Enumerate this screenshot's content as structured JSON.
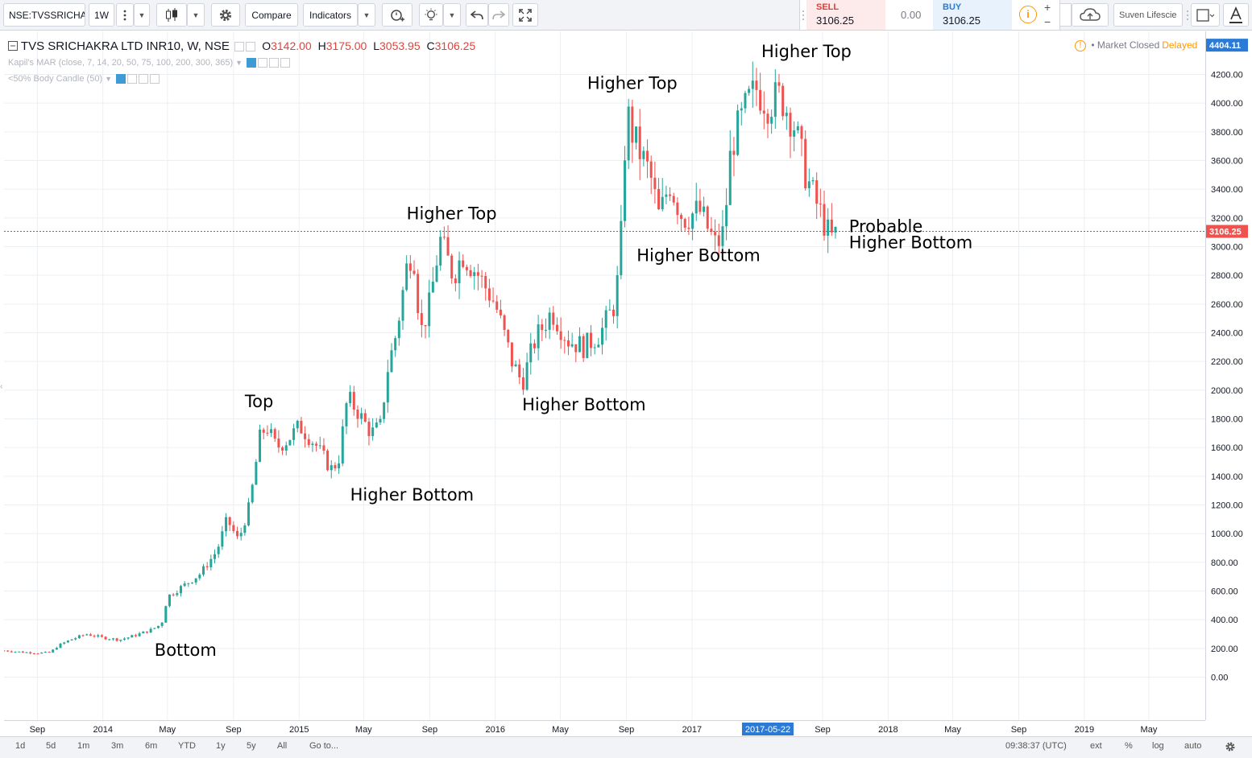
{
  "toolbar": {
    "symbol": "NSE:TVSSRICHA",
    "interval": "1W",
    "compare_label": "Compare",
    "indicators_label": "Indicators",
    "sell_label": "SELL",
    "sell_price": "3106.25",
    "spread": "0.00",
    "buy_label": "BUY",
    "buy_price": "3106.25",
    "right_symbol": "Suven Lifescie"
  },
  "legend": {
    "title": "TVS SRICHAKRA LTD INR10, W, NSE",
    "o_label": "O",
    "o_value": "3142.00",
    "h_label": "H",
    "h_value": "3175.00",
    "l_label": "L",
    "l_value": "3053.95",
    "c_label": "C",
    "c_value": "3106.25",
    "indicator1": "Kapil's MAR (close, 7, 14, 20, 50, 75, 100, 200, 300, 365)",
    "indicator2": "<50% Body Candle (50)"
  },
  "status": {
    "market": "Market Closed",
    "delay": "Delayed"
  },
  "bottom_bar": {
    "ranges": [
      "1d",
      "5d",
      "1m",
      "3m",
      "6m",
      "YTD",
      "1y",
      "5y",
      "All"
    ],
    "goto": "Go to...",
    "time": "09:38:37 (UTC)",
    "ext": "ext",
    "percent": "%",
    "log": "log",
    "auto": "auto"
  },
  "colors": {
    "up": "#26a69a",
    "down": "#ef5350",
    "price_line": "#e53935",
    "last_price_bg": "#ef5350",
    "high_price_bg": "#2b7bd6",
    "date_marker_bg": "#2b7bd6"
  },
  "chart_data": {
    "type": "candlestick",
    "title": "TVS SRICHAKRA LTD INR10, W, NSE",
    "y_ticks": [
      0,
      200,
      400,
      600,
      800,
      1000,
      1200,
      1400,
      1600,
      1800,
      2000,
      2200,
      2400,
      2600,
      2800,
      3000,
      3200,
      3400,
      3600,
      3800,
      4000,
      4200
    ],
    "y_tick_labels": [
      "0.00",
      "200.00",
      "400.00",
      "600.00",
      "800.00",
      "1000.00",
      "1200.00",
      "1400.00",
      "1600.00",
      "1800.00",
      "2000.00",
      "2200.00",
      "2400.00",
      "2600.00",
      "2800.00",
      "3000.00",
      "3200.00",
      "3400.00",
      "3600.00",
      "3800.00",
      "4000.00",
      "4200.00"
    ],
    "ylim": [
      -300,
      4500
    ],
    "x_ticks": [
      {
        "label": "Sep",
        "date": "2013-09-01"
      },
      {
        "label": "2014",
        "date": "2014-01-01"
      },
      {
        "label": "May",
        "date": "2014-05-01"
      },
      {
        "label": "Sep",
        "date": "2014-09-01"
      },
      {
        "label": "2015",
        "date": "2015-01-01"
      },
      {
        "label": "May",
        "date": "2015-05-01"
      },
      {
        "label": "Sep",
        "date": "2015-09-01"
      },
      {
        "label": "2016",
        "date": "2016-01-01"
      },
      {
        "label": "May",
        "date": "2016-05-01"
      },
      {
        "label": "Sep",
        "date": "2016-09-01"
      },
      {
        "label": "2017",
        "date": "2017-01-01"
      },
      {
        "label": "Sep",
        "date": "2017-09-01"
      },
      {
        "label": "2018",
        "date": "2018-01-01"
      },
      {
        "label": "May",
        "date": "2018-05-01"
      },
      {
        "label": "Sep",
        "date": "2018-09-01"
      },
      {
        "label": "2019",
        "date": "2019-01-01"
      },
      {
        "label": "May",
        "date": "2019-05-01"
      }
    ],
    "xlim": [
      "2013-07-01",
      "2019-08-14"
    ],
    "last_price": 3106.25,
    "last_price_label": "3106.25",
    "high_price": 4404.11,
    "high_price_label": "4404.11",
    "date_marker": {
      "label": "2017-05-22",
      "date": "2017-05-22"
    },
    "annotations": [
      {
        "text": "Bottom",
        "date": "2014-04-07",
        "value": 150
      },
      {
        "text": "Top",
        "date": "2014-09-22",
        "value": 1880
      },
      {
        "text": "Higher Bottom",
        "date": "2015-04-06",
        "value": 1230
      },
      {
        "text": "Higher Top",
        "date": "2015-07-20",
        "value": 3190
      },
      {
        "text": "Higher Bottom",
        "date": "2016-02-20",
        "value": 1860
      },
      {
        "text": "Higher Top",
        "date": "2016-06-20",
        "value": 4100
      },
      {
        "text": "Higher Bottom",
        "date": "2016-09-20",
        "value": 2900
      },
      {
        "text": "Higher Top",
        "date": "2017-05-10",
        "value": 4320
      },
      {
        "text": "Probable",
        "date": "2017-10-20",
        "value": 3100
      },
      {
        "text": "Higher Bottom",
        "date": "2017-10-20",
        "value": 2990
      }
    ],
    "price_path": [
      [
        "2013-07-01",
        185
      ],
      [
        "2013-08-01",
        175
      ],
      [
        "2013-09-01",
        168
      ],
      [
        "2013-09-25",
        172
      ],
      [
        "2013-10-10",
        220
      ],
      [
        "2013-11-01",
        260
      ],
      [
        "2013-12-01",
        300
      ],
      [
        "2014-01-01",
        275
      ],
      [
        "2014-02-01",
        260
      ],
      [
        "2014-03-01",
        290
      ],
      [
        "2014-04-01",
        330
      ],
      [
        "2014-04-20",
        370
      ],
      [
        "2014-05-01",
        560
      ],
      [
        "2014-06-01",
        640
      ],
      [
        "2014-07-01",
        720
      ],
      [
        "2014-08-01",
        880
      ],
      [
        "2014-08-20",
        1100
      ],
      [
        "2014-09-10",
        950
      ],
      [
        "2014-10-01",
        1200
      ],
      [
        "2014-10-20",
        1670
      ],
      [
        "2014-11-01",
        1750
      ],
      [
        "2014-11-20",
        1600
      ],
      [
        "2014-12-10",
        1650
      ],
      [
        "2015-01-01",
        1750
      ],
      [
        "2015-02-01",
        1620
      ],
      [
        "2015-03-01",
        1450
      ],
      [
        "2015-03-15",
        1500
      ],
      [
        "2015-04-01",
        1950
      ],
      [
        "2015-04-20",
        1850
      ],
      [
        "2015-05-15",
        1700
      ],
      [
        "2015-06-01",
        1750
      ],
      [
        "2015-06-15",
        2150
      ],
      [
        "2015-07-01",
        2400
      ],
      [
        "2015-07-20",
        2850
      ],
      [
        "2015-08-01",
        3000
      ],
      [
        "2015-08-15",
        2400
      ],
      [
        "2015-09-01",
        2600
      ],
      [
        "2015-09-20",
        3050
      ],
      [
        "2015-10-15",
        2800
      ],
      [
        "2015-11-01",
        2950
      ],
      [
        "2015-12-01",
        2800
      ],
      [
        "2016-01-01",
        2600
      ],
      [
        "2016-02-01",
        2200
      ],
      [
        "2016-02-20",
        2050
      ],
      [
        "2016-03-15",
        2350
      ],
      [
        "2016-04-15",
        2550
      ],
      [
        "2016-05-15",
        2350
      ],
      [
        "2016-06-15",
        2300
      ],
      [
        "2016-07-15",
        2400
      ],
      [
        "2016-08-10",
        2600
      ],
      [
        "2016-08-20",
        2900
      ],
      [
        "2016-09-01",
        3950
      ],
      [
        "2016-09-15",
        3750
      ],
      [
        "2016-10-15",
        3500
      ],
      [
        "2016-11-01",
        3200
      ],
      [
        "2016-11-20",
        3450
      ],
      [
        "2016-12-15",
        3200
      ],
      [
        "2017-01-15",
        3250
      ],
      [
        "2017-02-15",
        3000
      ],
      [
        "2017-03-01",
        3100
      ],
      [
        "2017-03-15",
        3700
      ],
      [
        "2017-04-15",
        4000
      ],
      [
        "2017-05-01",
        4100
      ],
      [
        "2017-05-22",
        4000
      ],
      [
        "2017-06-15",
        4050
      ],
      [
        "2017-07-10",
        3850
      ],
      [
        "2017-08-01",
        3500
      ],
      [
        "2017-08-15",
        3350
      ],
      [
        "2017-09-01",
        3200
      ],
      [
        "2017-09-15",
        3050
      ],
      [
        "2017-10-01",
        3100
      ]
    ]
  }
}
